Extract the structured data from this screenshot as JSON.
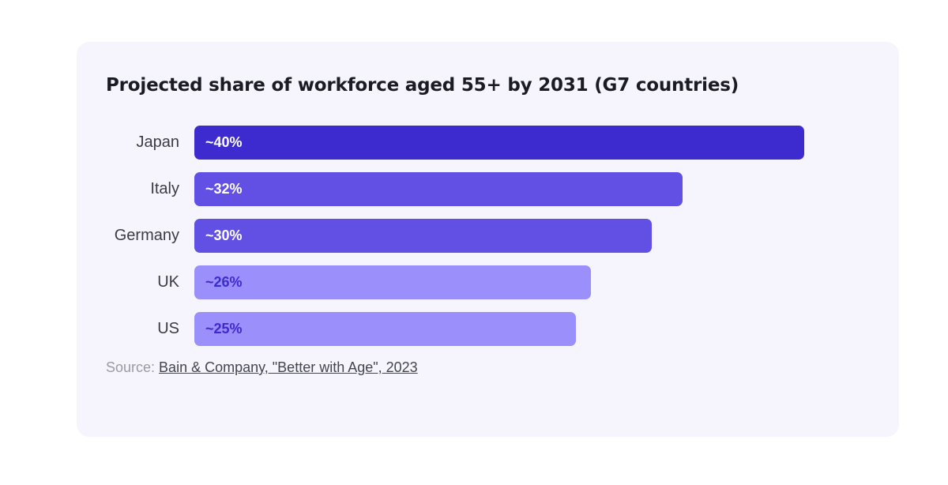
{
  "chart_data": {
    "type": "bar",
    "orientation": "horizontal",
    "title": "Projected share of workforce aged 55+ by 2031 (G7 countries)",
    "categories": [
      "Japan",
      "Italy",
      "Germany",
      "UK",
      "US"
    ],
    "values": [
      40,
      32,
      30,
      26,
      25
    ],
    "value_labels": [
      "~40%",
      "~32%",
      "~30%",
      "~26%",
      "~25%"
    ],
    "bar_colors": [
      "#3d2bd0",
      "#6150e3",
      "#6150e3",
      "#9a8ffb",
      "#9a8ffb"
    ],
    "label_colors": [
      "#ffffff",
      "#ffffff",
      "#ffffff",
      "#3d2bd0",
      "#3d2bd0"
    ],
    "xlim": [
      0,
      40
    ],
    "grid": false,
    "legend": "none"
  },
  "source": {
    "prefix": "Source: ",
    "link_text": "Bain & Company, \"Better with Age\", 2023"
  }
}
